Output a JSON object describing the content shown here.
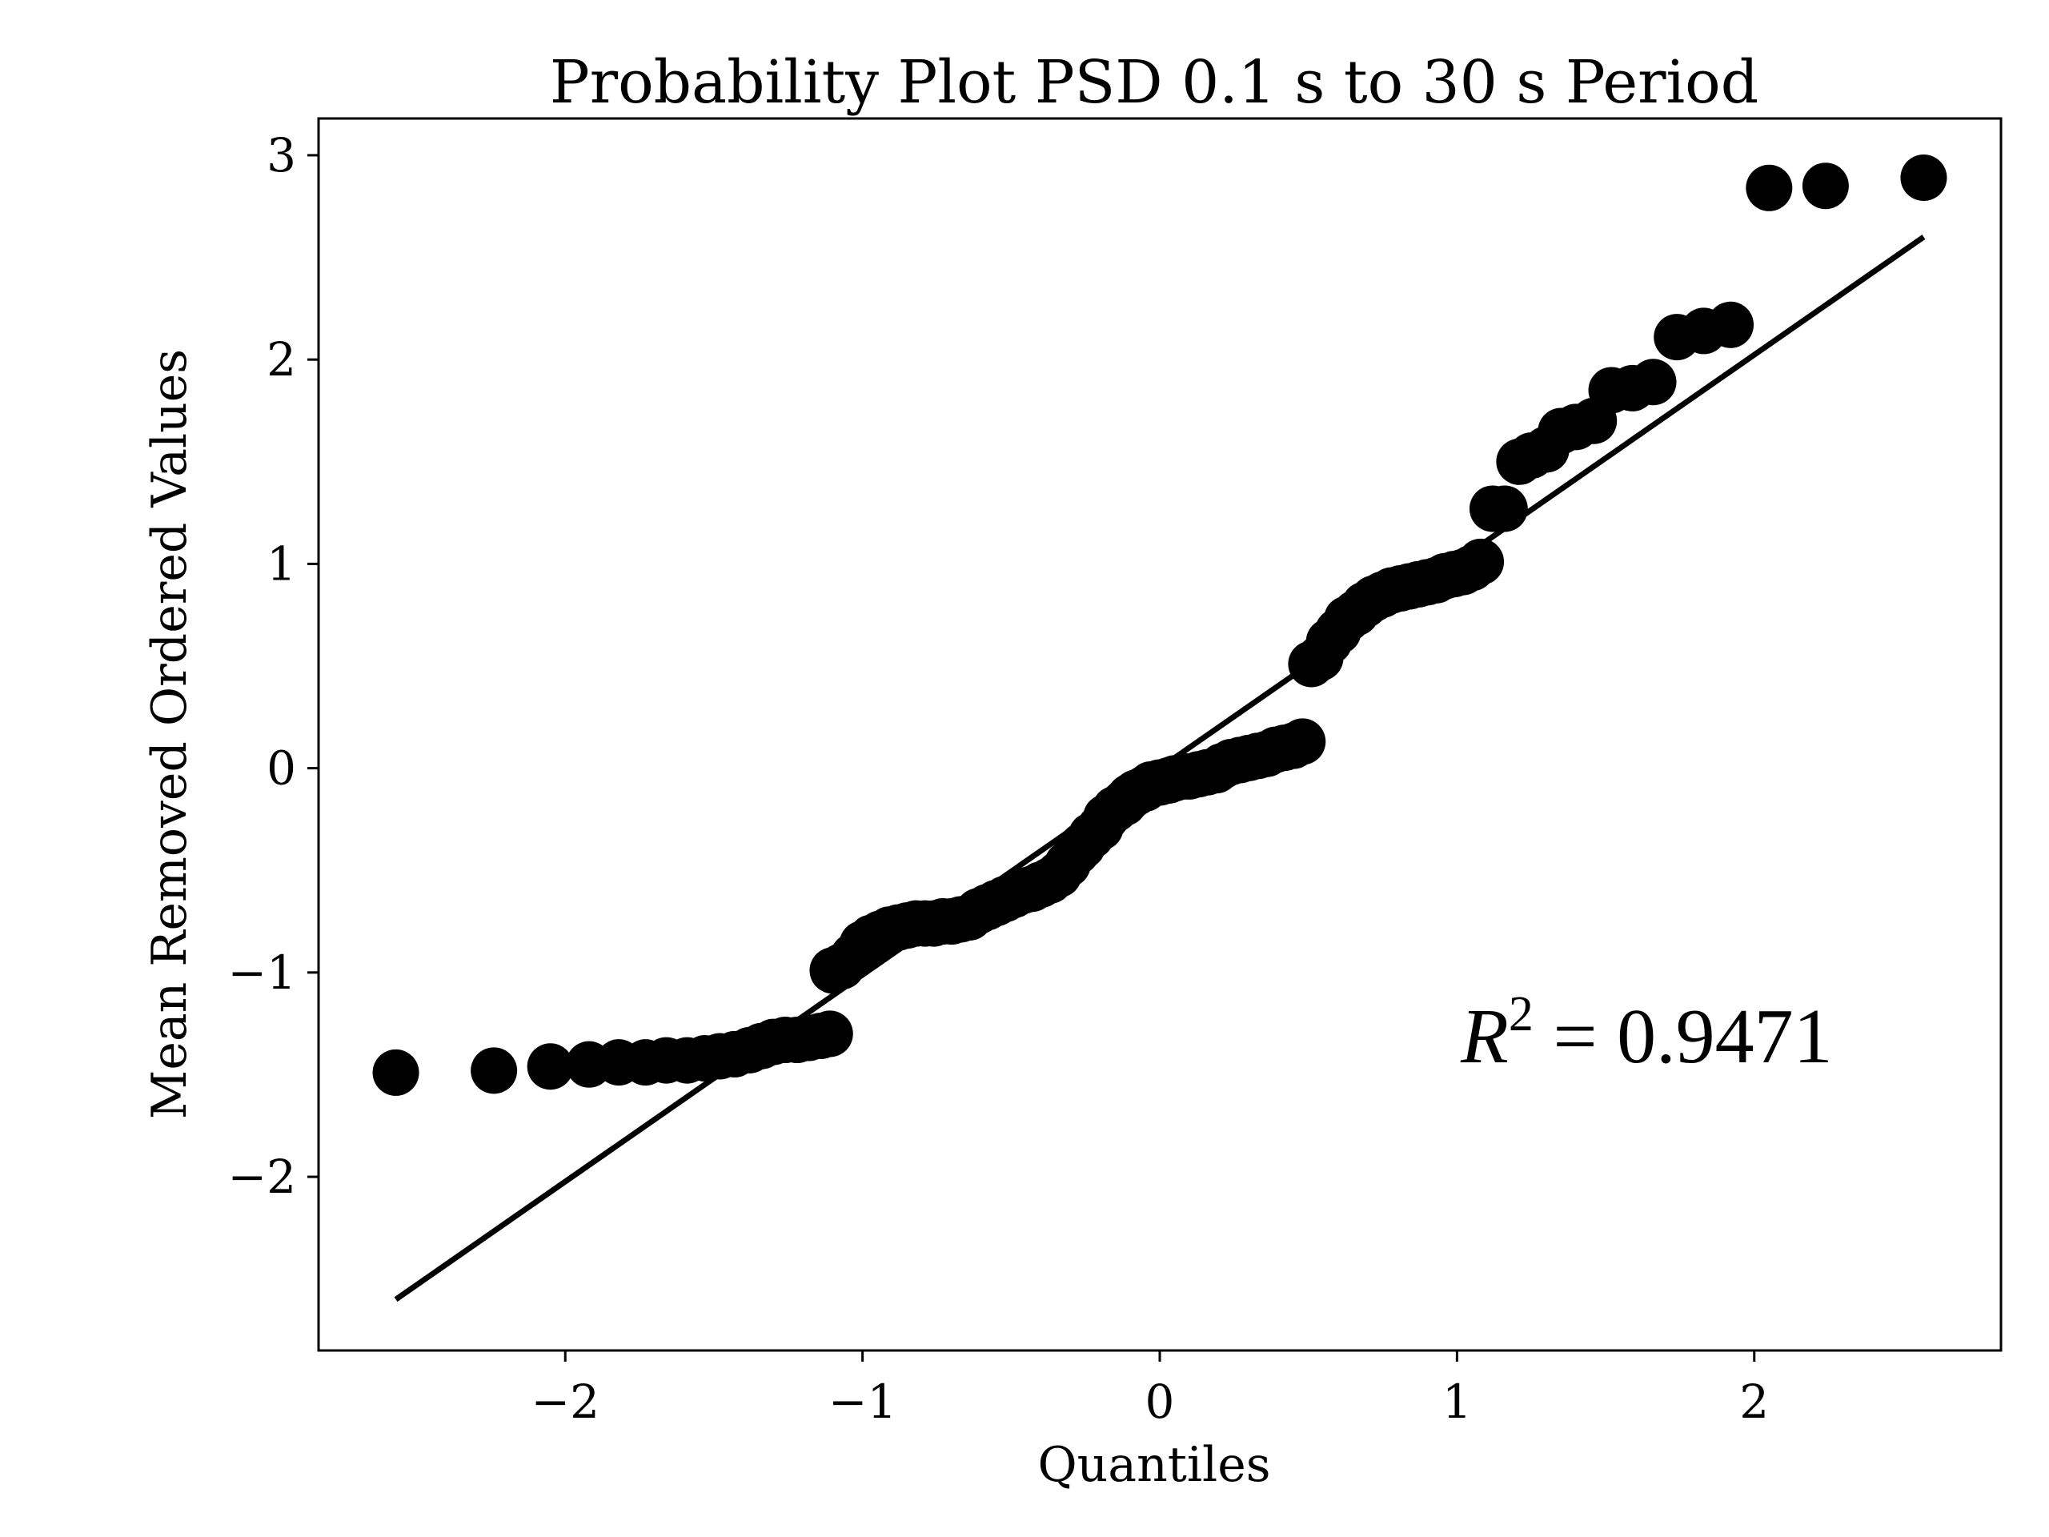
{
  "chart_data": {
    "type": "scatter",
    "title": "Probability Plot PSD 0.1 s to 30 s Period",
    "xlabel": "Quantiles",
    "ylabel": "Mean Removed Ordered Values",
    "xlim": [
      -2.83,
      2.83
    ],
    "ylim": [
      -2.85,
      3.18
    ],
    "xticks": [
      -2,
      -1,
      0,
      1,
      2
    ],
    "yticks": [
      -2,
      -1,
      0,
      1,
      2,
      3
    ],
    "xtick_labels": [
      "−2",
      "−1",
      "0",
      "1",
      "2"
    ],
    "ytick_labels": [
      "−2",
      "−1",
      "0",
      "1",
      "2",
      "3"
    ],
    "grid": false,
    "annotation": {
      "r_symbol": "R",
      "exponent": "2",
      "text": " = 0.9471"
    },
    "colors": {
      "points": "#000000",
      "line": "#000000",
      "axes": "#000000"
    },
    "fit_line": {
      "x": [
        -2.57,
        2.57
      ],
      "y": [
        -2.6,
        2.6
      ]
    },
    "series": [
      {
        "x": [
          -2.57,
          -2.24,
          -2.05,
          -1.92,
          -1.82,
          -1.73,
          -1.66,
          -1.59,
          -1.53,
          -1.48,
          -1.43,
          -1.38,
          -1.34,
          -1.3,
          -1.26,
          -1.22,
          -1.18,
          -1.14,
          -1.11,
          -1.1,
          -1.07,
          -1.03,
          -1.0,
          -0.97,
          -0.94,
          -0.91,
          -0.88,
          -0.85,
          -0.82,
          -0.79,
          -0.76,
          -0.73,
          -0.7,
          -0.67,
          -0.64,
          -0.61,
          -0.58,
          -0.55,
          -0.52,
          -0.49,
          -0.46,
          -0.43,
          -0.4,
          -0.37,
          -0.34,
          -0.31,
          -0.28,
          -0.26,
          -0.23,
          -0.2,
          -0.18,
          -0.15,
          -0.12,
          -0.1,
          -0.08,
          -0.05,
          -0.03,
          0.0,
          0.03,
          0.05,
          0.08,
          0.1,
          0.13,
          0.16,
          0.19,
          0.21,
          0.24,
          0.27,
          0.3,
          0.33,
          0.36,
          0.39,
          0.42,
          0.45,
          0.48,
          0.51,
          0.54,
          0.57,
          0.6,
          0.63,
          0.66,
          0.69,
          0.72,
          0.75,
          0.78,
          0.81,
          0.84,
          0.87,
          0.9,
          0.93,
          0.96,
          0.99,
          1.02,
          1.05,
          1.08,
          1.12,
          1.16,
          1.21,
          1.25,
          1.3,
          1.35,
          1.4,
          1.46,
          1.52,
          1.59,
          1.66,
          1.74,
          1.83,
          1.92,
          2.05,
          2.24,
          2.57
        ],
        "y": [
          -1.49,
          -1.48,
          -1.46,
          -1.45,
          -1.44,
          -1.44,
          -1.43,
          -1.43,
          -1.42,
          -1.41,
          -1.4,
          -1.38,
          -1.36,
          -1.34,
          -1.33,
          -1.33,
          -1.32,
          -1.31,
          -1.3,
          -0.99,
          -0.97,
          -0.92,
          -0.86,
          -0.83,
          -0.81,
          -0.79,
          -0.78,
          -0.77,
          -0.76,
          -0.76,
          -0.76,
          -0.75,
          -0.75,
          -0.74,
          -0.73,
          -0.7,
          -0.68,
          -0.66,
          -0.64,
          -0.62,
          -0.6,
          -0.59,
          -0.57,
          -0.55,
          -0.52,
          -0.47,
          -0.41,
          -0.38,
          -0.33,
          -0.29,
          -0.24,
          -0.2,
          -0.17,
          -0.14,
          -0.12,
          -0.1,
          -0.08,
          -0.07,
          -0.06,
          -0.05,
          -0.04,
          -0.04,
          -0.03,
          -0.02,
          -0.01,
          0.01,
          0.03,
          0.04,
          0.05,
          0.06,
          0.07,
          0.09,
          0.1,
          0.11,
          0.13,
          0.51,
          0.54,
          0.62,
          0.67,
          0.73,
          0.76,
          0.8,
          0.83,
          0.85,
          0.87,
          0.88,
          0.89,
          0.9,
          0.91,
          0.92,
          0.94,
          0.95,
          0.96,
          0.98,
          1.01,
          1.27,
          1.27,
          1.5,
          1.53,
          1.56,
          1.65,
          1.67,
          1.7,
          1.85,
          1.86,
          1.89,
          2.11,
          2.14,
          2.17,
          2.84,
          2.85,
          2.89
        ]
      }
    ]
  }
}
